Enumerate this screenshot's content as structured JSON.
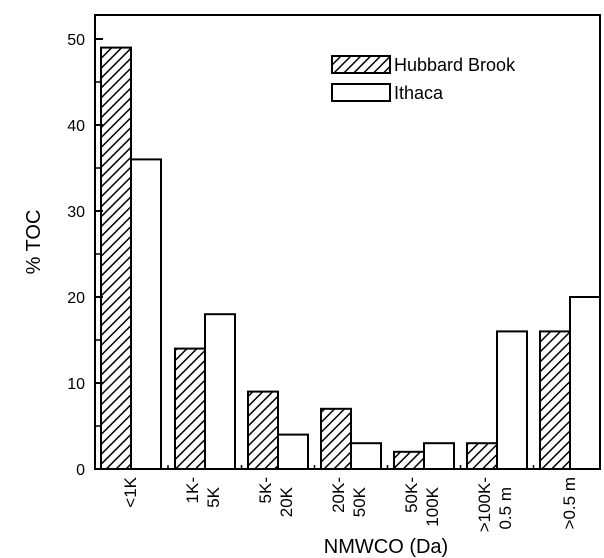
{
  "chart_data": {
    "type": "bar",
    "title": "",
    "xlabel": "NMWCO (Da)",
    "ylabel": "% TOC",
    "ylim": [
      0,
      55
    ],
    "yticks": [
      "0",
      "10",
      "20",
      "30",
      "40",
      "50"
    ],
    "categories": [
      [
        "<1K"
      ],
      [
        "1K-",
        "5K"
      ],
      [
        "5K-",
        "20K"
      ],
      [
        "20K-",
        "50K"
      ],
      [
        "50K-",
        "100K"
      ],
      [
        ">100K-",
        "0.5  m"
      ],
      [
        ">0.5  m"
      ]
    ],
    "series": [
      {
        "name": "Hubbard Brook",
        "fill": "hatched",
        "values": [
          49,
          14,
          9,
          7,
          2,
          3,
          16
        ]
      },
      {
        "name": "Ithaca",
        "fill": "white",
        "values": [
          36,
          18,
          4,
          3,
          3,
          16,
          20
        ]
      }
    ],
    "grid": false,
    "legend_position": "top-right"
  },
  "colors": {
    "stroke": "#000000",
    "open_fill": "#ffffff"
  }
}
